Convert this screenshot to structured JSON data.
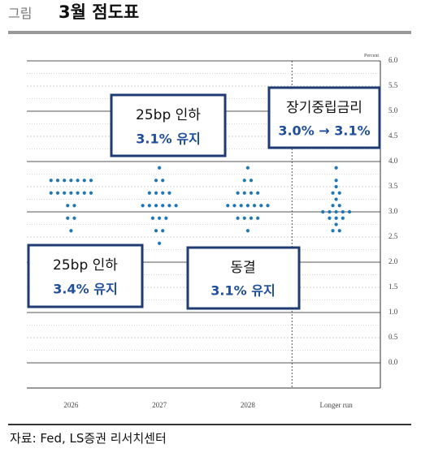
{
  "header": {
    "label": "그림",
    "title": "3월 점도표"
  },
  "chart_data": {
    "type": "dot",
    "y_label": "Percent",
    "categories": [
      "2026",
      "2027",
      "2028",
      "Longer run"
    ],
    "values": [
      [
        3.625,
        3.625,
        3.625,
        3.625,
        3.625,
        3.625,
        3.625,
        3.375,
        3.375,
        3.375,
        3.375,
        3.375,
        3.375,
        3.375,
        3.125,
        3.125,
        2.875,
        2.875,
        2.625
      ],
      [
        3.875,
        3.625,
        3.625,
        3.375,
        3.375,
        3.375,
        3.375,
        3.125,
        3.125,
        3.125,
        3.125,
        3.125,
        3.125,
        2.875,
        2.875,
        2.875,
        2.625,
        2.625,
        2.375
      ],
      [
        3.875,
        3.625,
        3.625,
        3.375,
        3.375,
        3.375,
        3.375,
        3.125,
        3.125,
        3.125,
        3.125,
        3.125,
        3.125,
        3.125,
        2.875,
        2.875,
        2.875,
        2.875,
        2.625
      ],
      [
        3.875,
        3.625,
        3.5,
        3.375,
        3.375,
        3.25,
        3.125,
        3.125,
        3.0,
        3.0,
        3.0,
        3.0,
        3.0,
        2.875,
        2.875,
        2.875,
        2.75,
        2.625,
        2.625
      ]
    ],
    "color": "#1f78b4",
    "ylim": [
      -0.5,
      6.0
    ],
    "yticks": [
      {
        "value": 0,
        "label": "0.0"
      },
      0.5,
      {
        "value": 1,
        "label": "1.0"
      },
      1.5,
      {
        "value": 2,
        "label": "2.0"
      },
      2.5,
      {
        "value": 3,
        "label": "3.0"
      },
      3.5,
      {
        "value": 4,
        "label": "4.0"
      },
      4.5,
      {
        "value": 5,
        "label": "5.0"
      },
      5.5,
      {
        "value": 6,
        "label": "6.0"
      }
    ],
    "grid": true,
    "annotations": [
      {
        "lines": [
          "25bp 인하",
          "3.1% 유지"
        ]
      },
      {
        "lines": [
          "장기중립금리",
          "3.0% → 3.1%"
        ]
      },
      {
        "lines": [
          "25bp 인하",
          "3.4% 유지"
        ]
      },
      {
        "lines": [
          "동결",
          "3.1% 유지"
        ]
      }
    ]
  },
  "source": "자료: Fed, LS증권 리서치센터"
}
